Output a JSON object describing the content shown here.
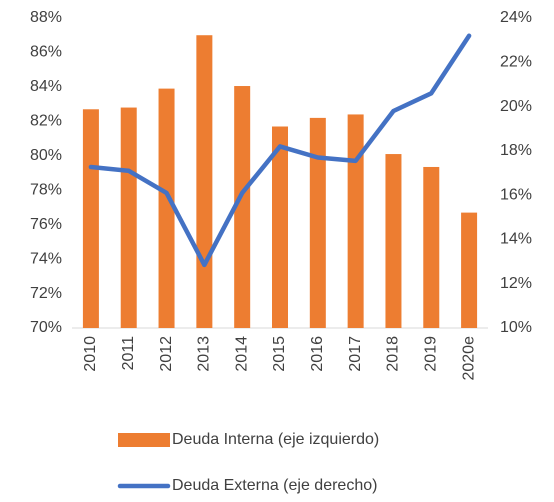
{
  "chart_data": {
    "type": "bar_line",
    "categories": [
      "2010",
      "2011",
      "2012",
      "2013",
      "2014",
      "2015",
      "2016",
      "2017",
      "2018",
      "2019",
      "2020e"
    ],
    "series": [
      {
        "name": "Deuda Interna (eje izquierdo)",
        "type": "bar",
        "color": "#ed7d31",
        "values": [
          82.7,
          82.8,
          83.9,
          87.0,
          84.05,
          81.7,
          82.2,
          82.4,
          80.1,
          79.35,
          76.7
        ]
      },
      {
        "name": "Deuda Externa (eje derecho)",
        "type": "line",
        "axis": "y2",
        "color": "#4472c4",
        "values": [
          17.27,
          17.1,
          16.1,
          12.85,
          16.1,
          18.2,
          17.7,
          17.55,
          19.8,
          20.6,
          23.2
        ]
      }
    ],
    "ylim": [
      70,
      88
    ],
    "yticks": [
      {
        "value": 70,
        "label": "70%"
      },
      {
        "value": 72,
        "label": "72%"
      },
      {
        "value": 74,
        "label": "74%"
      },
      {
        "value": 76,
        "label": "76%"
      },
      {
        "value": 78,
        "label": "78%"
      },
      {
        "value": 80,
        "label": "80%"
      },
      {
        "value": 82,
        "label": "82%"
      },
      {
        "value": 84,
        "label": "84%"
      },
      {
        "value": 86,
        "label": "86%"
      },
      {
        "value": 88,
        "label": "88%"
      }
    ],
    "y2lim": [
      10,
      24
    ],
    "y2ticks": [
      {
        "value": 10,
        "label": "10%"
      },
      {
        "value": 12,
        "label": "12%"
      },
      {
        "value": 14,
        "label": "14%"
      },
      {
        "value": 16,
        "label": "16%"
      },
      {
        "value": 18,
        "label": "18%"
      },
      {
        "value": 20,
        "label": "20%"
      },
      {
        "value": 22,
        "label": "22%"
      },
      {
        "value": 24,
        "label": "24%"
      }
    ],
    "grid": false
  }
}
